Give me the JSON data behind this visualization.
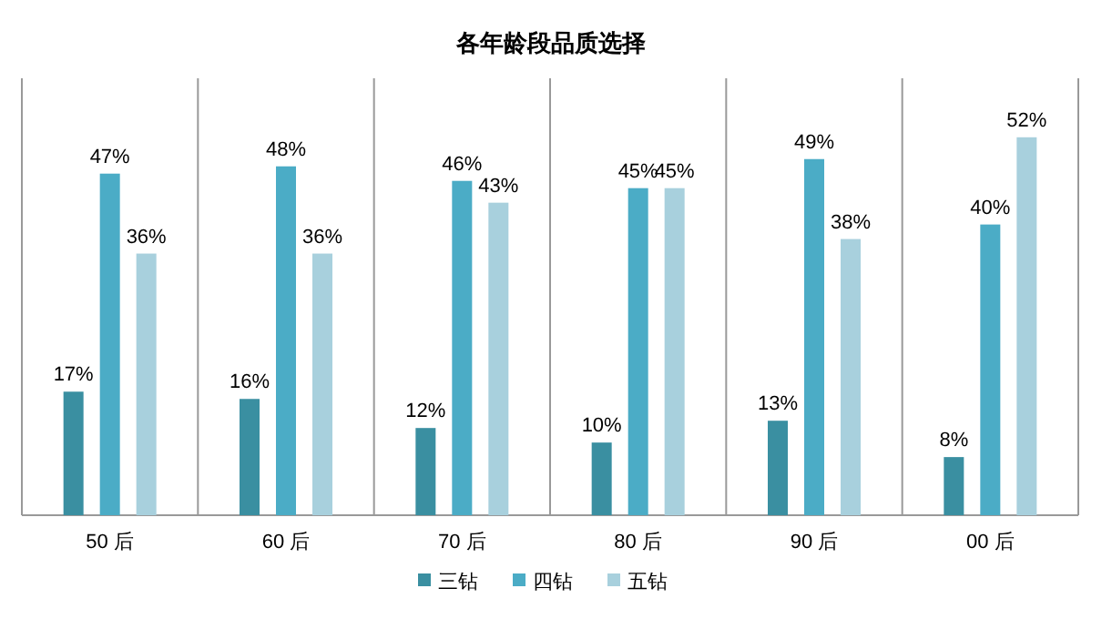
{
  "chart_data": {
    "type": "bar",
    "title": "各年龄段品质选择",
    "categories": [
      "50 后",
      "60 后",
      "70 后",
      "80 后",
      "90 后",
      "00 后"
    ],
    "series": [
      {
        "name": "三钻",
        "color": "#3a8fa1",
        "values": [
          17,
          16,
          12,
          10,
          13,
          8
        ],
        "value_labels": [
          "17%",
          "16%",
          "12%",
          "10%",
          "13%",
          "8%"
        ]
      },
      {
        "name": "四钻",
        "color": "#4bacc6",
        "values": [
          47,
          48,
          46,
          45,
          49,
          40
        ],
        "value_labels": [
          "47%",
          "48%",
          "46%",
          "45%",
          "49%",
          "40%"
        ]
      },
      {
        "name": "五钻",
        "color": "#a8d0dd",
        "values": [
          36,
          36,
          43,
          45,
          38,
          52
        ],
        "value_labels": [
          "36%",
          "36%",
          "43%",
          "45%",
          "38%",
          "52%"
        ]
      }
    ],
    "grid": "x",
    "legend": "bottom"
  }
}
